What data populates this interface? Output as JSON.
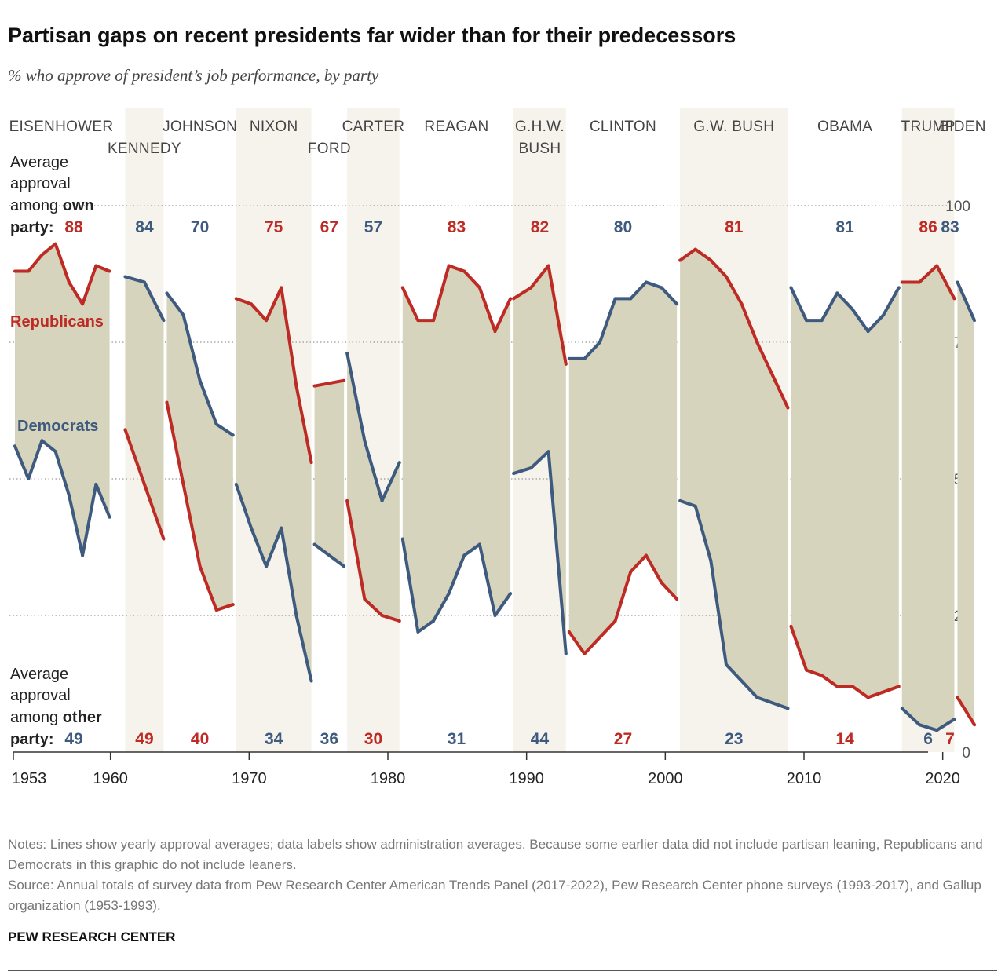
{
  "title": "Partisan gaps on recent presidents far wider than for their predecessors",
  "subtitle": "% who approve of president’s job performance, by party",
  "notes": "Notes: Lines show yearly approval averages; data labels show administration averages. Because some earlier data did not include partisan leaning, Republicans and Democrats in this graphic do not include leaners.",
  "source": "Source: Annual totals of survey data from Pew Research Center American Trends Panel (2017-2022), Pew Research Center phone surveys (1993-2017), and Gallup organization (1953-1993).",
  "brand": "PEW RESEARCH CENTER",
  "colors": {
    "republicans": "#be2a24",
    "democrats": "#3e5a7e",
    "gap_fill": "#d6d4bc",
    "band": "#f5f3ec",
    "grid": "#999999"
  },
  "chart_data": {
    "type": "line",
    "xlim": [
      1953,
      2022
    ],
    "ylim": [
      0,
      100
    ],
    "yticks": [
      0,
      25,
      50,
      75,
      100
    ],
    "xticks": [
      1953,
      1960,
      1970,
      1980,
      1990,
      2000,
      2010,
      2020
    ],
    "legend": {
      "own_label": [
        "Average",
        "approval",
        "among",
        "own",
        "party:"
      ],
      "other_label": [
        "Average",
        "approval",
        "among",
        "other",
        "party:"
      ]
    },
    "series_names": {
      "republicans": "Republicans",
      "democrats": "Democrats"
    },
    "presidents": [
      {
        "name": [
          "EISENHOWER"
        ],
        "party": "R",
        "start": 1953,
        "end": 1960.05,
        "band": false,
        "years": [
          1953,
          1954,
          1955,
          1956,
          1957,
          1958,
          1959,
          1960
        ],
        "rep": [
          88,
          88,
          91,
          93,
          86,
          82,
          89,
          88
        ],
        "dem": [
          56,
          50,
          57,
          55,
          47,
          36,
          49,
          43
        ],
        "own_avg": 88,
        "other_avg": 49
      },
      {
        "name": [
          "KENNEDY"
        ],
        "party": "D",
        "start": 1960.95,
        "end": 1963.95,
        "band": true,
        "years": [
          1961,
          1962,
          1963
        ],
        "rep": [
          59,
          49,
          39
        ],
        "dem": [
          87,
          86,
          79
        ],
        "own_avg": 84,
        "other_avg": 49
      },
      {
        "name": [
          "JOHNSON"
        ],
        "party": "D",
        "start": 1963.95,
        "end": 1968.95,
        "band": false,
        "years": [
          1964,
          1965,
          1966,
          1967,
          1968
        ],
        "rep": [
          64,
          49,
          34,
          26,
          27
        ],
        "dem": [
          84,
          80,
          68,
          60,
          58
        ],
        "own_avg": 70,
        "other_avg": 40
      },
      {
        "name": [
          "NIXON"
        ],
        "party": "R",
        "start": 1968.95,
        "end": 1974.6,
        "band": true,
        "years": [
          1969,
          1970,
          1971,
          1972,
          1973,
          1974
        ],
        "rep": [
          83,
          82,
          79,
          85,
          67,
          53
        ],
        "dem": [
          49,
          41,
          34,
          41,
          25,
          13
        ],
        "own_avg": 75,
        "other_avg": 34
      },
      {
        "name": [
          "FORD"
        ],
        "party": "R",
        "start": 1974.6,
        "end": 1976.95,
        "band": false,
        "years": [
          1975,
          1976
        ],
        "rep": [
          67,
          68
        ],
        "dem": [
          38,
          34
        ],
        "own_avg": 67,
        "other_avg": 36
      },
      {
        "name": [
          "CARTER"
        ],
        "party": "D",
        "start": 1976.95,
        "end": 1980.95,
        "band": true,
        "years": [
          1977,
          1978,
          1979,
          1980
        ],
        "rep": [
          46,
          28,
          25,
          24
        ],
        "dem": [
          73,
          57,
          46,
          53
        ],
        "own_avg": 57,
        "other_avg": 30
      },
      {
        "name": [
          "REAGAN"
        ],
        "party": "R",
        "start": 1980.95,
        "end": 1988.95,
        "band": false,
        "years": [
          1981,
          1982,
          1983,
          1984,
          1985,
          1986,
          1987,
          1988
        ],
        "rep": [
          85,
          79,
          79,
          89,
          88,
          85,
          77,
          83
        ],
        "dem": [
          39,
          22,
          24,
          29,
          36,
          38,
          25,
          29
        ],
        "own_avg": 83,
        "other_avg": 31
      },
      {
        "name": [
          "G.H.W.",
          "BUSH"
        ],
        "party": "R",
        "start": 1988.95,
        "end": 1992.95,
        "band": true,
        "years": [
          1989,
          1990,
          1991,
          1992
        ],
        "rep": [
          83,
          85,
          89,
          71
        ],
        "dem": [
          51,
          52,
          55,
          18
        ],
        "own_avg": 82,
        "other_avg": 44
      },
      {
        "name": [
          "CLINTON"
        ],
        "party": "D",
        "start": 1992.95,
        "end": 2000.95,
        "band": false,
        "years": [
          1993,
          1994,
          1995,
          1996,
          1997,
          1998,
          1999,
          2000
        ],
        "rep": [
          22,
          18,
          21,
          24,
          33,
          36,
          31,
          28
        ],
        "dem": [
          72,
          72,
          75,
          83,
          83,
          86,
          85,
          82
        ],
        "own_avg": 80,
        "other_avg": 27
      },
      {
        "name": [
          "G.W. BUSH"
        ],
        "party": "R",
        "start": 2000.95,
        "end": 2008.95,
        "band": true,
        "years": [
          2001,
          2002,
          2003,
          2004,
          2005,
          2006,
          2007,
          2008
        ],
        "rep": [
          90,
          92,
          90,
          87,
          82,
          75,
          69,
          63
        ],
        "dem": [
          46,
          45,
          35,
          16,
          13,
          10,
          9,
          8
        ],
        "own_avg": 81,
        "other_avg": 23
      },
      {
        "name": [
          "OBAMA"
        ],
        "party": "D",
        "start": 2008.95,
        "end": 2016.95,
        "band": false,
        "years": [
          2009,
          2010,
          2011,
          2012,
          2013,
          2014,
          2015,
          2016
        ],
        "rep": [
          23,
          15,
          14,
          12,
          12,
          10,
          11,
          12
        ],
        "dem": [
          85,
          79,
          79,
          84,
          81,
          77,
          80,
          85
        ],
        "own_avg": 81,
        "other_avg": 14
      },
      {
        "name": [
          "TRUMP"
        ],
        "party": "R",
        "start": 2016.95,
        "end": 2020.95,
        "band": true,
        "years": [
          2017,
          2018,
          2019,
          2020
        ],
        "rep": [
          86,
          86,
          89,
          83
        ],
        "dem": [
          8,
          5,
          4,
          6
        ],
        "own_avg": 86,
        "other_avg": 6
      },
      {
        "name": [
          "BIDEN"
        ],
        "party": "D",
        "start": 2020.95,
        "end": 2022.4,
        "band": false,
        "years": [
          2021,
          2022
        ],
        "rep": [
          10,
          5
        ],
        "dem": [
          86,
          79
        ],
        "own_avg": 83,
        "other_avg": 7
      }
    ]
  }
}
